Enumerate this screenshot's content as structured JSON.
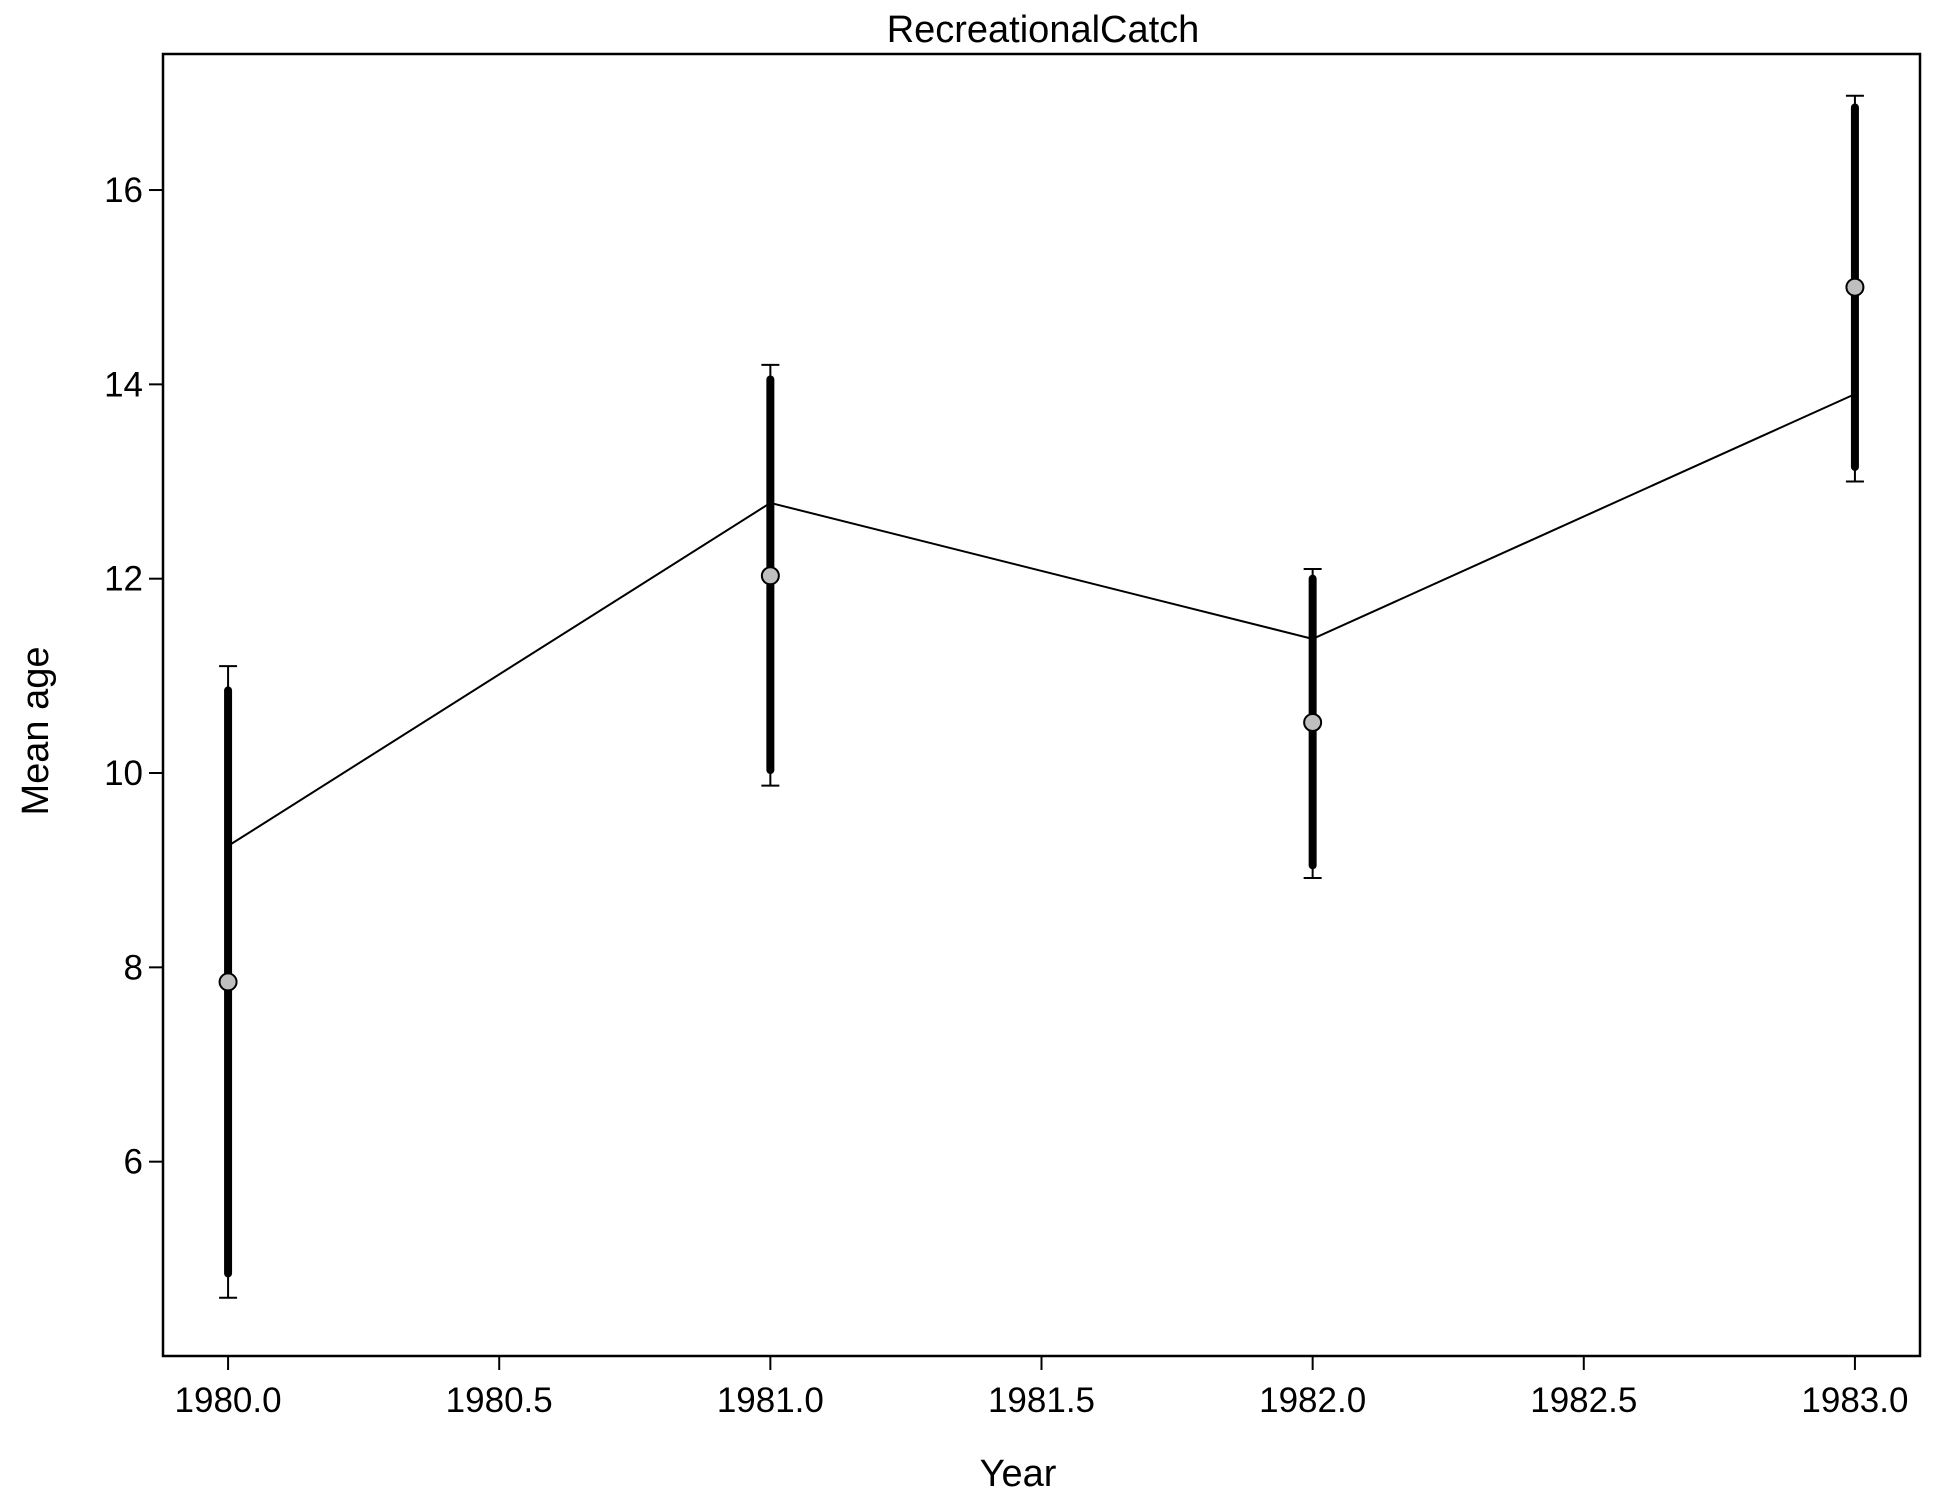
{
  "chart_data": {
    "type": "line",
    "title": "RecreationalCatch",
    "xlabel": "Year",
    "ylabel": "Mean age",
    "xlim": [
      1979.88,
      1983.12
    ],
    "ylim": [
      4.0,
      17.4
    ],
    "xticks": [
      1980.0,
      1980.5,
      1981.0,
      1981.5,
      1982.0,
      1982.5,
      1983.0
    ],
    "xtick_labels": [
      "1980.0",
      "1980.5",
      "1981.0",
      "1981.5",
      "1982.0",
      "1982.5",
      "1983.0"
    ],
    "yticks": [
      6,
      8,
      10,
      12,
      14,
      16
    ],
    "ytick_labels": [
      "6",
      "8",
      "10",
      "12",
      "14",
      "16"
    ],
    "grid": false,
    "series": [
      {
        "kind": "expected-line",
        "x": [
          1980,
          1981,
          1982,
          1983
        ],
        "y": [
          9.25,
          12.78,
          11.38,
          13.9
        ],
        "color": "#000000"
      },
      {
        "kind": "observed-points",
        "x": [
          1980,
          1981,
          1982,
          1983
        ],
        "y": [
          7.85,
          12.03,
          10.52,
          15.0
        ],
        "inner_interval": [
          [
            4.85,
            10.85
          ],
          [
            10.03,
            14.05
          ],
          [
            9.05,
            12.0
          ],
          [
            13.15,
            16.85
          ]
        ],
        "outer_interval": [
          [
            4.6,
            11.1
          ],
          [
            9.87,
            14.2
          ],
          [
            8.92,
            12.1
          ],
          [
            13.0,
            16.97
          ]
        ],
        "marker_color": "#bfbfbf"
      }
    ]
  }
}
